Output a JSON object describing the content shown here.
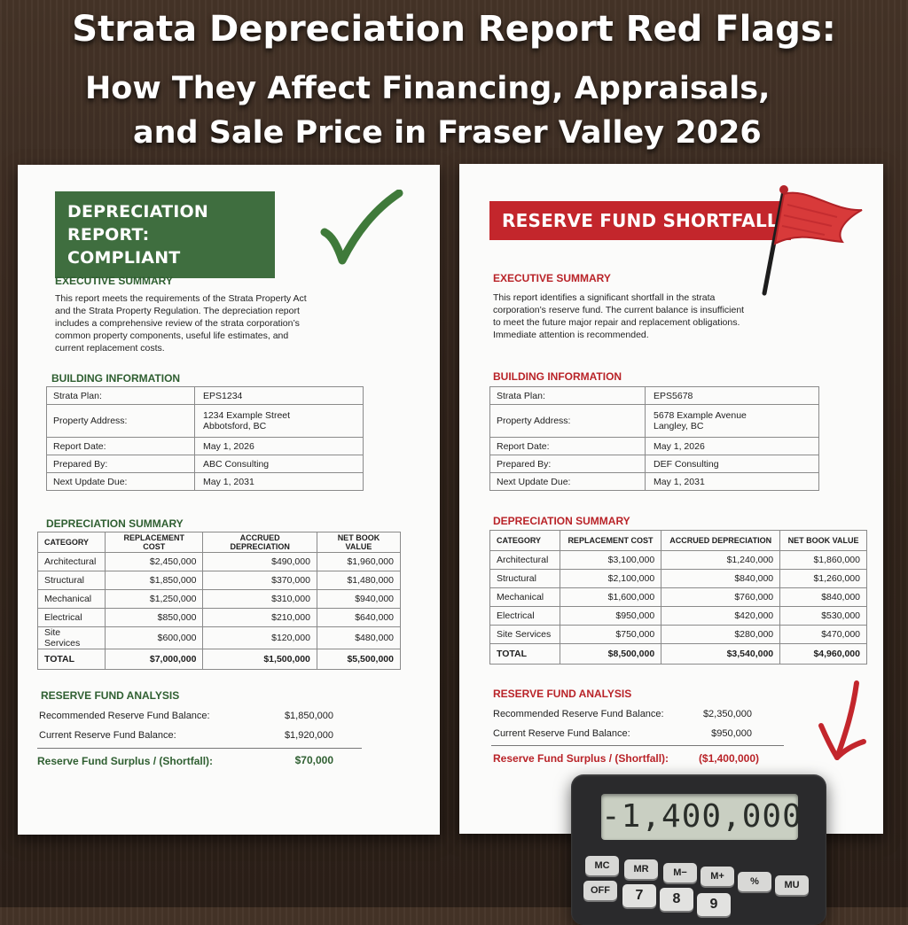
{
  "title": {
    "line1": "Strata Depreciation Report Red Flags:",
    "line2": "How They Affect Financing, Appraisals,",
    "line3": "and Sale Price in Fraser Valley 2026"
  },
  "left": {
    "banner_line1": "DEPRECIATION REPORT:",
    "banner_line2": "COMPLIANT",
    "icon": "checkmark-icon",
    "exec_heading": "EXECUTIVE SUMMARY",
    "exec_lines": [
      "This report meets the requirements of the Strata Property Act",
      "and the Strata Property Regulation. The depreciation report",
      "includes a comprehensive review of the strata corporation’s",
      "common property components, useful life estimates, and",
      "current replacement costs."
    ],
    "building_heading": "BUILDING INFORMATION",
    "building": {
      "strata_plan_label": "Strata Plan:",
      "strata_plan": "EPS1234",
      "address_label": "Property Address:",
      "address_line1": "1234 Example Street",
      "address_line2": "Abbotsford, BC",
      "report_date_label": "Report Date:",
      "report_date": "May 1, 2026",
      "prepared_by_label": "Prepared By:",
      "prepared_by": "ABC Consulting",
      "next_update_label": "Next Update Due:",
      "next_update": "May 1, 2031"
    },
    "dep_heading": "DEPRECIATION SUMMARY",
    "dep_headers": [
      "CATEGORY",
      "REPLACEMENT COST",
      "ACCRUED DEPRECIATION",
      "NET BOOK VALUE"
    ],
    "dep_rows": [
      [
        "Architectural",
        "$2,450,000",
        "$490,000",
        "$1,960,000"
      ],
      [
        "Structural",
        "$1,850,000",
        "$370,000",
        "$1,480,000"
      ],
      [
        "Mechanical",
        "$1,250,000",
        "$310,000",
        "$940,000"
      ],
      [
        "Electrical",
        "$850,000",
        "$210,000",
        "$640,000"
      ],
      [
        "Site Services",
        "$600,000",
        "$120,000",
        "$480,000"
      ]
    ],
    "dep_total": [
      "TOTAL",
      "$7,000,000",
      "$1,500,000",
      "$5,500,000"
    ],
    "reserve_heading": "RESERVE FUND ANALYSIS",
    "recommended_label": "Recommended Reserve Fund Balance:",
    "recommended": "$1,850,000",
    "current_label": "Current Reserve Fund Balance:",
    "current": "$1,920,000",
    "surplus_label": "Reserve Fund Surplus / (Shortfall):",
    "surplus": "$70,000"
  },
  "right": {
    "banner": "RESERVE FUND SHORTFALL",
    "icon": "red-flag-icon",
    "exec_heading": "EXECUTIVE SUMMARY",
    "exec_lines": [
      "This report identifies a significant shortfall in the strata",
      "corporation’s reserve fund. The current balance is insufficient",
      "to meet the future major repair and replacement obligations.",
      "Immediate attention is recommended."
    ],
    "building_heading": "BUILDING INFORMATION",
    "building": {
      "strata_plan_label": "Strata Plan:",
      "strata_plan": "EPS5678",
      "address_label": "Property Address:",
      "address_line1": "5678 Example Avenue",
      "address_line2": "Langley, BC",
      "report_date_label": "Report Date:",
      "report_date": "May 1, 2026",
      "prepared_by_label": "Prepared By:",
      "prepared_by": "DEF Consulting",
      "next_update_label": "Next Update Due:",
      "next_update": "May 1, 2031"
    },
    "dep_heading": "DEPRECIATION SUMMARY",
    "dep_headers": [
      "CATEGORY",
      "REPLACEMENT COST",
      "ACCRUED DEPRECIATION",
      "NET BOOK VALUE"
    ],
    "dep_rows": [
      [
        "Architectural",
        "$3,100,000",
        "$1,240,000",
        "$1,860,000"
      ],
      [
        "Structural",
        "$2,100,000",
        "$840,000",
        "$1,260,000"
      ],
      [
        "Mechanical",
        "$1,600,000",
        "$760,000",
        "$840,000"
      ],
      [
        "Electrical",
        "$950,000",
        "$420,000",
        "$530,000"
      ],
      [
        "Site Services",
        "$750,000",
        "$280,000",
        "$470,000"
      ]
    ],
    "dep_total": [
      "TOTAL",
      "$8,500,000",
      "$3,540,000",
      "$4,960,000"
    ],
    "reserve_heading": "RESERVE FUND ANALYSIS",
    "recommended_label": "Recommended Reserve Fund Balance:",
    "recommended": "$2,350,000",
    "current_label": "Current Reserve Fund Balance:",
    "current": "$950,000",
    "surplus_label": "Reserve Fund Surplus / (Shortfall):",
    "surplus": "($1,400,000)",
    "arrow_icon": "red-down-arrow-icon"
  },
  "calculator": {
    "display": "-1,400,000",
    "keys_row1": [
      "MC",
      "MR",
      "M−",
      "M+",
      "%",
      "MU"
    ],
    "keys_row2": [
      "OFF",
      "7",
      "8",
      "9"
    ]
  },
  "colors": {
    "green": "#3f6e3f",
    "red": "#c3262c"
  }
}
